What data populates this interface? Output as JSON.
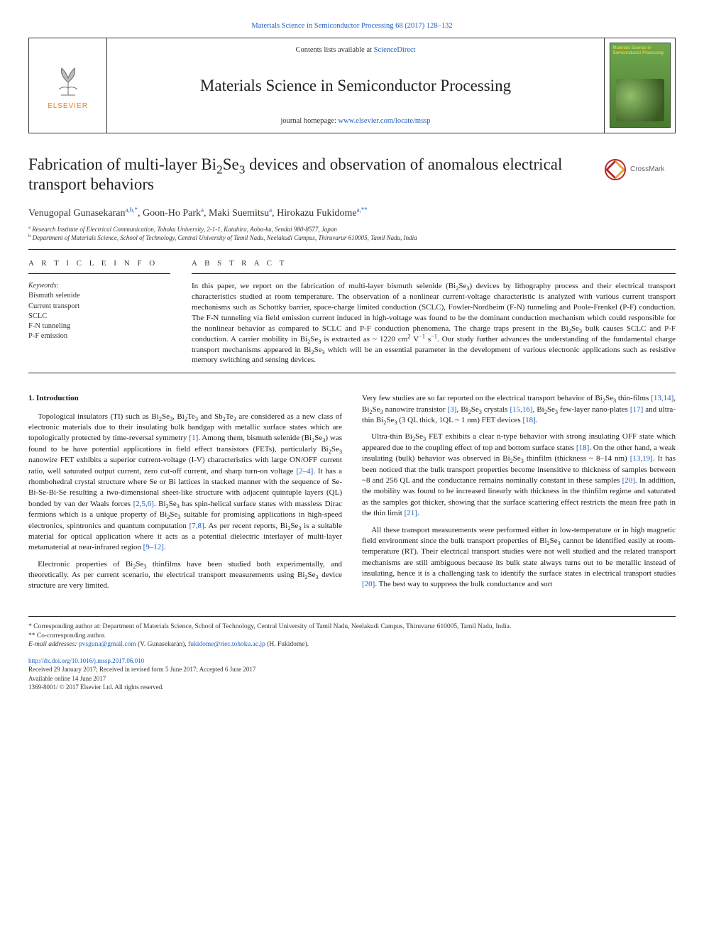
{
  "top_link": {
    "prefix": "Materials Science in Semiconductor Processing 68 (2017) 128–132"
  },
  "header": {
    "contents_prefix": "Contents lists available at ",
    "contents_link": "ScienceDirect",
    "journal": "Materials Science in Semiconductor Processing",
    "homepage_prefix": "journal homepage: ",
    "homepage_link": "www.elsevier.com/locate/mssp",
    "elsevier_label": "ELSEVIER",
    "cover_title": "Materials Science in Semiconductor Processing"
  },
  "crossmark": {
    "label": "CrossMark"
  },
  "title_html": "Fabrication of multi-layer Bi<sub>2</sub>Se<sub>3</sub> devices and observation of anomalous electrical transport behaviors",
  "authors_html": "Venugopal Gunasekaran<sup>a,b,*</sup>, Goon-Ho Park<sup>a</sup>, Maki Suemitsu<sup>a</sup>, Hirokazu Fukidome<sup>a,**</sup>",
  "affiliations": {
    "a": "Research Institute of Electrical Communication, Tohoku University, 2-1-1, Katahira, Aoba-ku, Sendai 980-8577, Japan",
    "b": "Department of Materials Science, School of Technology, Central University of Tamil Nadu, Neelakudi Campus, Thiruvarur 610005, Tamil Nadu, India"
  },
  "info": {
    "head": "A R T I C L E  I N F O",
    "kw_label": "Keywords:",
    "keywords": [
      "Bismuth selenide",
      "Current transport",
      "SCLC",
      "F-N tunneling",
      "P-F emission"
    ]
  },
  "abstract": {
    "head": "A B S T R A C T",
    "text_html": "In this paper, we report on the fabrication of multi-layer bismuth selenide (Bi<sub>2</sub>Se<sub>3</sub>) devices by lithography process and their electrical transport characteristics studied at room temperature. The observation of a nonlinear current-voltage characteristic is analyzed with various current transport mechanisms such as Schottky barrier, space-charge limited conduction (SCLC), Fowler-Nordheim (F-N) tunneling and Poole-Frenkel (P-F) conduction. The F-N tunneling via field emission current induced in high-voltage was found to be the dominant conduction mechanism which could responsible for the nonlinear behavior as compared to SCLC and P-F conduction phenomena. The charge traps present in the Bi<sub>2</sub>Se<sub>3</sub> bulk causes SCLC and P-F conduction. A carrier mobility in Bi<sub>2</sub>Se<sub>3</sub> is extracted as ~ 1220 cm<sup>2</sup> V<sup>−1</sup> s<sup>−1</sup>. Our study further advances the understanding of the fundamental charge transport mechanisms appeared in Bi<sub>2</sub>Se<sub>3</sub> which will be an essential parameter in the development of various electronic applications such as resistive memory switching and sensing devices."
  },
  "body": {
    "section_heading": "1. Introduction",
    "col1": [
      "Topological insulators (TI) such as Bi<sub>2</sub>Se<sub>3</sub>, Bi<sub>2</sub>Te<sub>3</sub> and Sb<sub>2</sub>Te<sub>3</sub> are considered as a new class of electronic materials due to their insulating bulk bandgap with metallic surface states which are topologically protected by time-reversal symmetry <span class=\"ref\">[1]</span>. Among them, bismuth selenide (Bi<sub>2</sub>Se<sub>3</sub>) was found to be have potential applications in field effect transistors (FETs), particularly Bi<sub>2</sub>Se<sub>3</sub> nanowire FET exhibits a superior current-voltage (I-V) characteristics with large ON/OFF current ratio, well saturated output current, zero cut-off current, and sharp turn-on voltage <span class=\"ref\">[2–4]</span>. It has a rhombohedral crystal structure where Se or Bi lattices in stacked manner with the sequence of Se-Bi-Se-Bi-Se resulting a two-dimensional sheet-like structure with adjacent quintuple layers (QL) bonded by van der Waals forces <span class=\"ref\">[2,5,6]</span>. Bi<sub>2</sub>Se<sub>3</sub> has spin-helical surface states with massless Dirac fermions which is a unique property of Bi<sub>2</sub>Se<sub>3</sub> suitable for promising applications in high-speed electronics, spintronics and quantum computation <span class=\"ref\">[7,8]</span>. As per recent reports, Bi<sub>2</sub>Se<sub>3</sub> is a suitable material for optical application where it acts as a potential dielectric interlayer of multi-layer metamaterial at near-infrared region <span class=\"ref\">[9–12]</span>.",
      "Electronic properties of Bi<sub>2</sub>Se<sub>3</sub> thinfilms have been studied both experimentally, and theoretically. As per current scenario, the electrical transport measurements using Bi<sub>2</sub>Se<sub>3</sub> device structure are very limited."
    ],
    "col2": [
      "Very few studies are so far reported on the electrical transport behavior of Bi<sub>2</sub>Se<sub>3</sub> thin-films <span class=\"ref\">[13,14]</span>, Bi<sub>2</sub>Se<sub>3</sub> nanowire transistor <span class=\"ref\">[3]</span>, Bi<sub>2</sub>Se<sub>3</sub> crystals <span class=\"ref\">[15,16]</span>, Bi<sub>2</sub>Se<sub>3</sub> few-layer nano-plates <span class=\"ref\">[17]</span> and ultra-thin Bi<sub>2</sub>Se<sub>3</sub> (3 QL thick, 1QL ~ 1 nm) FET devices <span class=\"ref\">[18]</span>.",
      "Ultra-thin Bi<sub>2</sub>Se<sub>3</sub> FET exhibits a clear n-type behavior with strong insulating OFF state which appeared due to the coupling effect of top and bottom surface states <span class=\"ref\">[18]</span>. On the other hand, a weak insulating (bulk) behavior was observed in Bi<sub>2</sub>Se<sub>3</sub> thinfilm (thickness ~ 8–14 nm) <span class=\"ref\">[13,19]</span>. It has been noticed that the bulk transport properties become insensitive to thickness of samples between ~8 and 256 QL and the conductance remains nominally constant in these samples <span class=\"ref\">[20]</span>. In addition, the mobility was found to be increased linearly with thickness in the thinfilm regime and saturated as the samples got thicker, showing that the surface scattering effect restricts the mean free path in the thin limit <span class=\"ref\">[21]</span>.",
      "All these transport measurements were performed either in low-temperature or in high magnetic field environment since the bulk transport properties of Bi<sub>2</sub>Se<sub>3</sub> cannot be identified easily at room-temperature (RT). Their electrical transport studies were not well studied and the related transport mechanisms are still ambiguous because its bulk state always turns out to be metallic instead of insulating, hence it is a challenging task to identify the surface states in electrical transport studies <span class=\"ref\">[20]</span>. The best way to suppress the bulk conductance and sort"
    ]
  },
  "footnotes": {
    "corr1": "* Corresponding author at: Department of Materials Science, School of Technology, Central University of Tamil Nadu, Neelakudi Campus, Thiruvarur 610005, Tamil Nadu, India.",
    "corr2": "** Co-corresponding author.",
    "email_label": "E-mail addresses: ",
    "email1": "pvsguna@gmail.com",
    "email1_who": " (V. Gunasekaran), ",
    "email2": "fukidome@riec.tohoku.ac.jp",
    "email2_who": " (H. Fukidome)."
  },
  "footer": {
    "doi": "http://dx.doi.org/10.1016/j.mssp.2017.06.010",
    "received": "Received 29 January 2017; Received in revised form 5 June 2017; Accepted 6 June 2017",
    "available": "Available online 14 June 2017",
    "issn": "1369-8001/ © 2017 Elsevier Ltd. All rights reserved."
  },
  "colors": {
    "link": "#2060c0",
    "elsevier_orange": "#ff7a00",
    "rule": "#222222",
    "text": "#1a1a1a",
    "crossmark_ring": "#b02a2a",
    "cover_grad_top": "#6fa84f",
    "cover_grad_bottom": "#4a7a2f"
  },
  "typography": {
    "body_pt": 11,
    "title_pt": 23,
    "journal_pt": 23,
    "authors_pt": 14,
    "affil_pt": 9,
    "footnote_pt": 9.5,
    "footer_pt": 9
  }
}
